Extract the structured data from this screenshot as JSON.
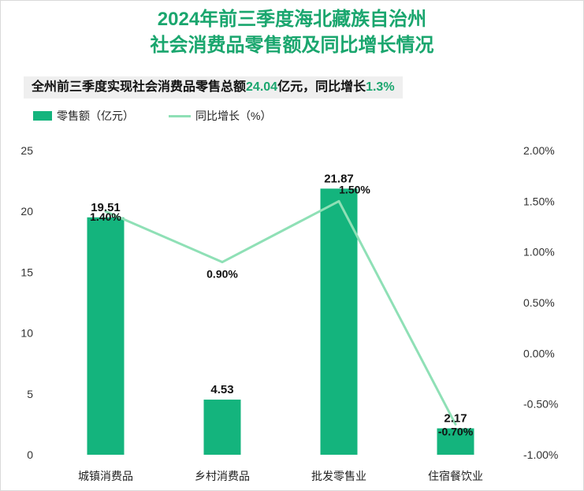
{
  "title_line1": "2024年前三季度海北藏族自治州",
  "title_line2": "社会消费品零售额及同比增长情况",
  "subtitle": {
    "prefix": "全州前三季度实现社会消费品零售总额",
    "total": "24.04",
    "mid": "亿元，同比增长",
    "growth": "1.3%"
  },
  "colors": {
    "title": "#1aa66e",
    "bar": "#14b47d",
    "line": "#8fe0b6"
  },
  "chart_data": {
    "type": "bar",
    "categories": [
      "城镇消费品",
      "乡村消费品",
      "批发零售业",
      "住宿餐饮业"
    ],
    "series": [
      {
        "name": "零售额（亿元）",
        "type": "bar",
        "axis": "left",
        "values": [
          19.51,
          4.53,
          21.87,
          2.17
        ],
        "labels": [
          "19.51",
          "4.53",
          "21.87",
          "2.17"
        ]
      },
      {
        "name": "同比增长（%）",
        "type": "line",
        "axis": "right",
        "values": [
          1.4,
          0.9,
          1.5,
          -0.7
        ],
        "labels": [
          "1.40%",
          "0.90%",
          "1.50%",
          "-0.70%"
        ]
      }
    ],
    "y_left": {
      "min": 0,
      "max": 25,
      "ticks": [
        "0",
        "5",
        "10",
        "15",
        "20",
        "25"
      ]
    },
    "y_right": {
      "min": -1.0,
      "max": 2.0,
      "ticks": [
        "-1.00%",
        "-0.50%",
        "0.00%",
        "0.50%",
        "1.00%",
        "1.50%",
        "2.00%"
      ]
    },
    "grid": false,
    "legend_position": "top-left"
  }
}
